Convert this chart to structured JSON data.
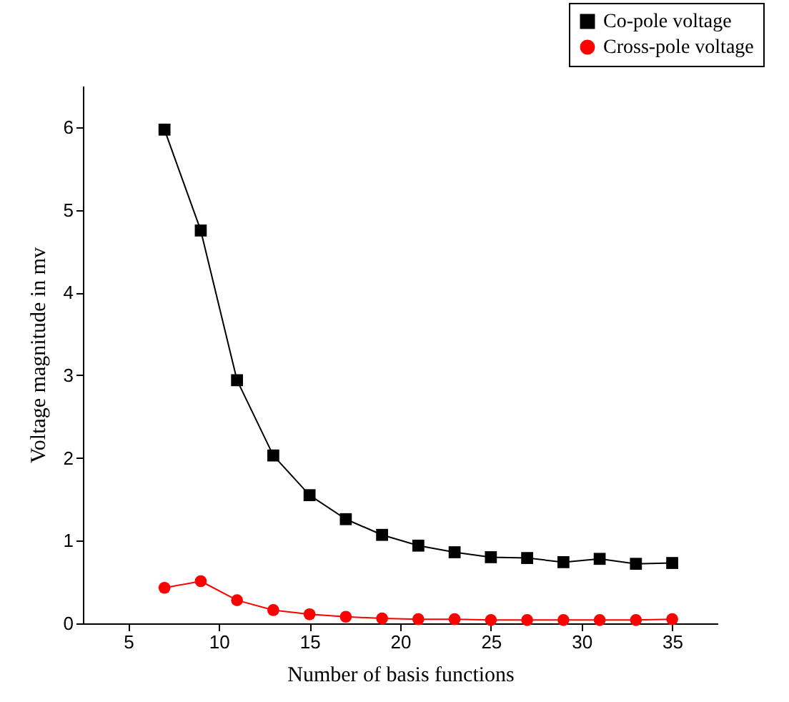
{
  "chart_data": {
    "type": "line",
    "xlabel": "Number of basis functions",
    "ylabel": "Voltage magnitude in mv",
    "x": [
      7,
      9,
      11,
      13,
      15,
      17,
      19,
      21,
      23,
      25,
      27,
      29,
      31,
      33,
      35
    ],
    "series": [
      {
        "name": "Co-pole voltage",
        "color": "#000000",
        "marker": "square",
        "values": [
          5.97,
          4.75,
          2.94,
          2.03,
          1.55,
          1.26,
          1.07,
          0.94,
          0.86,
          0.8,
          0.79,
          0.74,
          0.78,
          0.72,
          0.73
        ]
      },
      {
        "name": "Cross-pole voltage",
        "color": "#ff0000",
        "marker": "circle",
        "values": [
          0.43,
          0.51,
          0.28,
          0.16,
          0.11,
          0.08,
          0.06,
          0.05,
          0.05,
          0.04,
          0.04,
          0.04,
          0.04,
          0.04,
          0.05
        ]
      }
    ],
    "xlim": [
      2.5,
      37.5
    ],
    "xticks": [
      5,
      10,
      15,
      20,
      25,
      30,
      35
    ],
    "ylim": [
      0,
      6.5
    ],
    "yticks": [
      0,
      1,
      2,
      3,
      4,
      5,
      6
    ],
    "grid": false,
    "legend": "top right",
    "line_style": "solid"
  }
}
